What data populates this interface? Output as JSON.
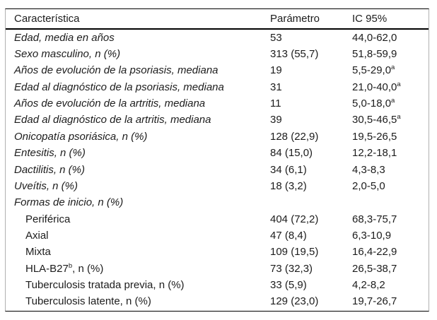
{
  "colors": {
    "strong_rule": "#000000",
    "light_rule": "#b0b0b0",
    "text": "#1c1c1c",
    "background": "#ffffff"
  },
  "table": {
    "columns": [
      "Característica",
      "Parámetro",
      "IC 95%"
    ],
    "rows": [
      {
        "label": "Edad, media en años",
        "label_sup": "",
        "label_rest": "",
        "param": "53",
        "ci": "44,0-62,0",
        "ci_sup": "",
        "italic": true,
        "indent": false
      },
      {
        "label": "Sexo masculino, n (%)",
        "label_sup": "",
        "label_rest": "",
        "param": "313 (55,7)",
        "ci": "51,8-59,9",
        "ci_sup": "",
        "italic": true,
        "indent": false
      },
      {
        "label": "Años de evolución de la psoriasis, mediana",
        "label_sup": "",
        "label_rest": "",
        "param": "19",
        "ci": "5,5-29,0",
        "ci_sup": "a",
        "italic": true,
        "indent": false
      },
      {
        "label": "Edad al diagnóstico de la psoriasis, mediana",
        "label_sup": "",
        "label_rest": "",
        "param": "31",
        "ci": "21,0-40,0",
        "ci_sup": "a",
        "italic": true,
        "indent": false
      },
      {
        "label": "Años de evolución de la artritis, mediana",
        "label_sup": "",
        "label_rest": "",
        "param": "11",
        "ci": "5,0-18,0",
        "ci_sup": "a",
        "italic": true,
        "indent": false
      },
      {
        "label": "Edad al diagnóstico de la artritis, mediana",
        "label_sup": "",
        "label_rest": "",
        "param": "39",
        "ci": "30,5-46,5",
        "ci_sup": "a",
        "italic": true,
        "indent": false
      },
      {
        "label": "Onicopatía psoriásica, n (%)",
        "label_sup": "",
        "label_rest": "",
        "param": "128 (22,9)",
        "ci": "19,5-26,5",
        "ci_sup": "",
        "italic": true,
        "indent": false
      },
      {
        "label": "Entesitis, n (%)",
        "label_sup": "",
        "label_rest": "",
        "param": "84 (15,0)",
        "ci": "12,2-18,1",
        "ci_sup": "",
        "italic": true,
        "indent": false
      },
      {
        "label": "Dactilitis, n (%)",
        "label_sup": "",
        "label_rest": "",
        "param": "34 (6,1)",
        "ci": "4,3-8,3",
        "ci_sup": "",
        "italic": true,
        "indent": false
      },
      {
        "label": "Uveítis, n (%)",
        "label_sup": "",
        "label_rest": "",
        "param": "18 (3,2)",
        "ci": "2,0-5,0",
        "ci_sup": "",
        "italic": true,
        "indent": false
      },
      {
        "label": "Formas de inicio, n (%)",
        "label_sup": "",
        "label_rest": "",
        "param": "",
        "ci": "",
        "ci_sup": "",
        "italic": true,
        "indent": false
      },
      {
        "label": "Periférica",
        "label_sup": "",
        "label_rest": "",
        "param": "404 (72,2)",
        "ci": "68,3-75,7",
        "ci_sup": "",
        "italic": false,
        "indent": true
      },
      {
        "label": "Axial",
        "label_sup": "",
        "label_rest": "",
        "param": "47 (8,4)",
        "ci": "6,3-10,9",
        "ci_sup": "",
        "italic": false,
        "indent": true
      },
      {
        "label": "Mixta",
        "label_sup": "",
        "label_rest": "",
        "param": "109 (19,5)",
        "ci": "16,4-22,9",
        "ci_sup": "",
        "italic": false,
        "indent": true
      },
      {
        "label": "HLA-B27",
        "label_sup": "b",
        "label_rest": ", n (%)",
        "param": "73 (32,3)",
        "ci": "26,5-38,7",
        "ci_sup": "",
        "italic": false,
        "indent": true
      },
      {
        "label": "Tuberculosis tratada previa, n (%)",
        "label_sup": "",
        "label_rest": "",
        "param": "33 (5,9)",
        "ci": "4,2-8,2",
        "ci_sup": "",
        "italic": false,
        "indent": true
      },
      {
        "label": "Tuberculosis latente, n (%)",
        "label_sup": "",
        "label_rest": "",
        "param": "129 (23,0)",
        "ci": "19,7-26,7",
        "ci_sup": "",
        "italic": false,
        "indent": true
      }
    ]
  }
}
